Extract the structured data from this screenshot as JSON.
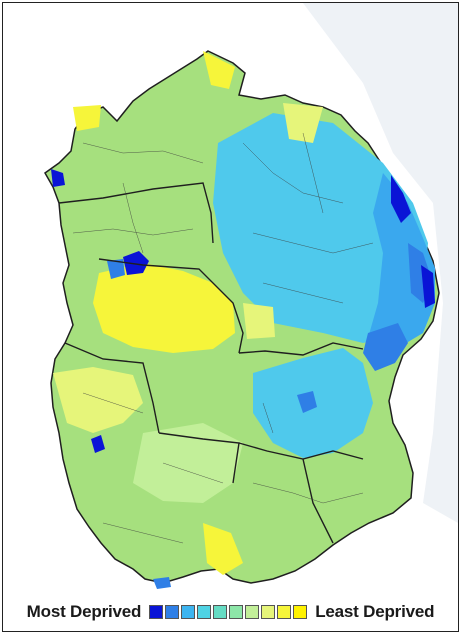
{
  "legend": {
    "left_label": "Most Deprived",
    "right_label": "Least Deprived",
    "scale": [
      {
        "decile": 1,
        "color": "#0a14d6"
      },
      {
        "decile": 2,
        "color": "#2f7fe6"
      },
      {
        "decile": 3,
        "color": "#3db5f0"
      },
      {
        "decile": 4,
        "color": "#4fd3e4"
      },
      {
        "decile": 5,
        "color": "#66dcc4"
      },
      {
        "decile": 6,
        "color": "#8de6a8"
      },
      {
        "decile": 7,
        "color": "#c2ef99"
      },
      {
        "decile": 8,
        "color": "#e6f57a"
      },
      {
        "decile": 9,
        "color": "#f6f53a"
      },
      {
        "decile": 10,
        "color": "#fff200"
      }
    ]
  },
  "map": {
    "background_sea": "#eef2f6",
    "boundary_color": "#222222"
  }
}
